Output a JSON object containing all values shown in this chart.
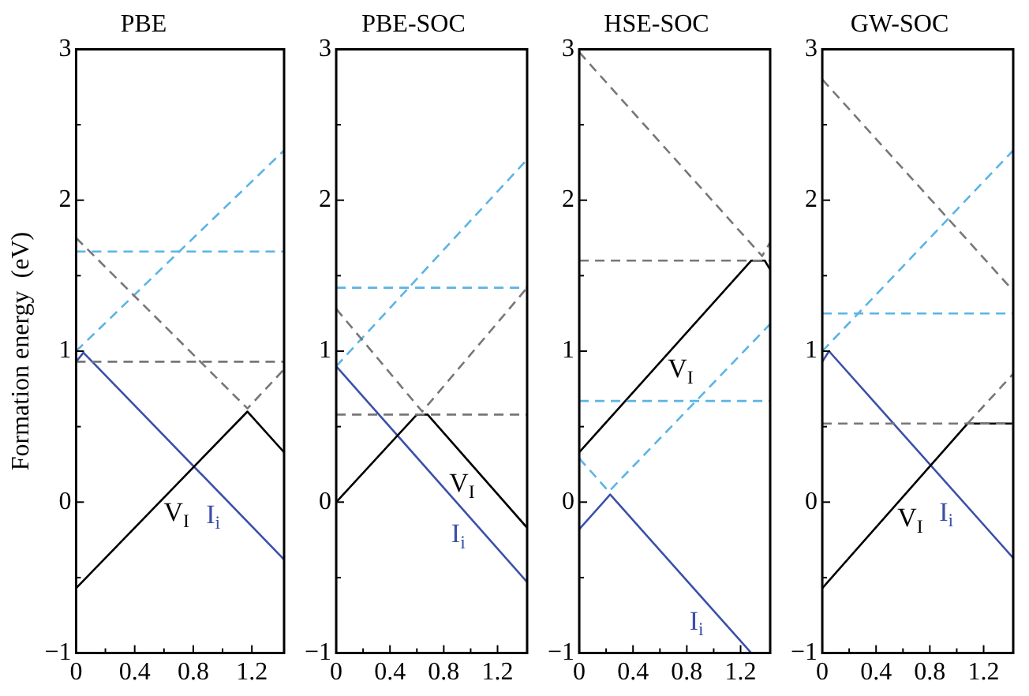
{
  "chart_data": [
    {
      "type": "line",
      "title": "PBE",
      "ylabel": "Formation energy  (eV)",
      "xlim": [
        0,
        1.42
      ],
      "ylim": [
        -1,
        3
      ],
      "xticks": [
        0,
        {
          "value": 0.2,
          "label": null
        },
        0.4,
        {
          "value": 0.6,
          "label": null
        },
        0.8,
        {
          "value": 1.0,
          "label": null
        },
        1.2
      ],
      "yticks": [
        -1,
        {
          "value": -0.5,
          "label": null
        },
        0,
        {
          "value": 0.5,
          "label": null
        },
        1,
        {
          "value": 1.5,
          "label": null
        },
        2,
        {
          "value": 2.5,
          "label": null
        },
        3
      ],
      "grid": false,
      "legend": false,
      "marker": "none",
      "series": [
        {
          "color": "#777777",
          "line_style": "dashed",
          "x": [
            0,
            1.42
          ],
          "values": [
            0.93,
            0.93
          ]
        },
        {
          "color": "#777777",
          "line_style": "dashed",
          "x": [
            0,
            1.17,
            1.42
          ],
          "values": [
            1.75,
            0.62,
            0.88
          ]
        },
        {
          "color": "#5ab4e6",
          "line_style": "dashed",
          "x": [
            0,
            1.42
          ],
          "values": [
            1.66,
            1.66
          ]
        },
        {
          "color": "#5ab4e6",
          "line_style": "dashed",
          "x": [
            0,
            1.42
          ],
          "values": [
            1.0,
            2.33
          ]
        },
        {
          "name": "V$_{I}$",
          "color": "#000000",
          "line_style": "solid",
          "x": [
            0,
            1.17,
            1.42
          ],
          "values": [
            -0.57,
            0.6,
            0.33
          ]
        },
        {
          "name": "I$_{i}$",
          "color": "#3b50a8",
          "line_style": "solid",
          "x": [
            0,
            0.05,
            1.42
          ],
          "values": [
            0.93,
            0.99,
            -0.38
          ]
        }
      ]
    },
    {
      "type": "line",
      "title": "PBE-SOC",
      "xlim": [
        0,
        1.42
      ],
      "ylim": [
        -1,
        3
      ],
      "xticks": [
        0,
        {
          "value": 0.2,
          "label": null
        },
        0.4,
        {
          "value": 0.6,
          "label": null
        },
        0.8,
        {
          "value": 1.0,
          "label": null
        },
        1.2
      ],
      "yticks": [
        -1,
        {
          "value": -0.5,
          "label": null
        },
        0,
        {
          "value": 0.5,
          "label": null
        },
        1,
        {
          "value": 1.5,
          "label": null
        },
        2,
        {
          "value": 2.5,
          "label": null
        },
        3
      ],
      "grid": false,
      "legend": false,
      "marker": "none",
      "series": [
        {
          "color": "#777777",
          "line_style": "dashed",
          "x": [
            0,
            1.42
          ],
          "values": [
            0.58,
            0.58
          ]
        },
        {
          "color": "#777777",
          "line_style": "dashed",
          "x": [
            0,
            0.64,
            1.42
          ],
          "values": [
            1.28,
            0.6,
            1.42
          ]
        },
        {
          "color": "#5ab4e6",
          "line_style": "dashed",
          "x": [
            0,
            1.42
          ],
          "values": [
            1.42,
            1.42
          ]
        },
        {
          "color": "#5ab4e6",
          "line_style": "dashed",
          "x": [
            0,
            1.42
          ],
          "values": [
            0.9,
            2.27
          ]
        },
        {
          "name": "V$_{I}$",
          "color": "#000000",
          "line_style": "solid",
          "x": [
            0,
            0.6,
            0.68,
            1.42
          ],
          "values": [
            0,
            0.58,
            0.58,
            -0.17
          ]
        },
        {
          "name": "I$_{i}$",
          "color": "#3b50a8",
          "line_style": "solid",
          "x": [
            0,
            1.42
          ],
          "values": [
            0.9,
            -0.53
          ]
        }
      ]
    },
    {
      "type": "line",
      "title": "HSE-SOC",
      "xlim": [
        0,
        1.42
      ],
      "ylim": [
        -1,
        3
      ],
      "xticks": [
        0,
        {
          "value": 0.2,
          "label": null
        },
        0.4,
        {
          "value": 0.6,
          "label": null
        },
        0.8,
        {
          "value": 1.0,
          "label": null
        },
        1.2
      ],
      "yticks": [
        -1,
        {
          "value": -0.5,
          "label": null
        },
        0,
        {
          "value": 0.5,
          "label": null
        },
        1,
        {
          "value": 1.5,
          "label": null
        },
        2,
        {
          "value": 2.5,
          "label": null
        },
        3
      ],
      "grid": false,
      "legend": false,
      "marker": "none",
      "series": [
        {
          "color": "#777777",
          "line_style": "dashed",
          "x": [
            0,
            1.42
          ],
          "values": [
            1.6,
            1.6
          ]
        },
        {
          "color": "#777777",
          "line_style": "dashed",
          "x": [
            0,
            1.36,
            1.42
          ],
          "values": [
            2.98,
            1.63,
            1.72
          ]
        },
        {
          "color": "#5ab4e6",
          "line_style": "dashed",
          "x": [
            0,
            1.42
          ],
          "values": [
            0.67,
            0.67
          ]
        },
        {
          "color": "#5ab4e6",
          "line_style": "dashed",
          "x": [
            0,
            0.22,
            1.42
          ],
          "values": [
            0.29,
            0.07,
            1.18
          ]
        },
        {
          "name": "V$_{I}$",
          "color": "#000000",
          "line_style": "solid",
          "x": [
            0,
            1.28,
            1.38,
            1.42
          ],
          "values": [
            0.33,
            1.6,
            1.6,
            1.54
          ]
        },
        {
          "name": "I$_{i}$",
          "color": "#3b50a8",
          "line_style": "solid",
          "x": [
            0,
            0.23,
            1.28
          ],
          "values": [
            -0.18,
            0.05,
            -1.0
          ]
        }
      ]
    },
    {
      "type": "line",
      "title": "GW-SOC",
      "xlim": [
        0,
        1.42
      ],
      "ylim": [
        -1,
        3
      ],
      "xticks": [
        0,
        {
          "value": 0.2,
          "label": null
        },
        0.4,
        {
          "value": 0.6,
          "label": null
        },
        0.8,
        {
          "value": 1.0,
          "label": null
        },
        1.2
      ],
      "yticks": [
        -1,
        {
          "value": -0.5,
          "label": null
        },
        0,
        {
          "value": 0.5,
          "label": null
        },
        1,
        {
          "value": 1.5,
          "label": null
        },
        2,
        {
          "value": 2.5,
          "label": null
        },
        3
      ],
      "grid": false,
      "legend": false,
      "marker": "none",
      "series": [
        {
          "color": "#777777",
          "line_style": "dashed",
          "x": [
            0,
            1.42
          ],
          "values": [
            0.52,
            0.52
          ]
        },
        {
          "color": "#777777",
          "line_style": "dashed",
          "x": [
            0,
            1.42
          ],
          "values": [
            2.8,
            1.4
          ]
        },
        {
          "color": "#777777",
          "line_style": "dashed",
          "x": [
            1.08,
            1.42
          ],
          "values": [
            0.52,
            0.85
          ]
        },
        {
          "color": "#5ab4e6",
          "line_style": "dashed",
          "x": [
            0,
            1.42
          ],
          "values": [
            1.25,
            1.25
          ]
        },
        {
          "color": "#5ab4e6",
          "line_style": "dashed",
          "x": [
            0,
            1.42
          ],
          "values": [
            1.0,
            2.33
          ]
        },
        {
          "name": "V$_{I}$",
          "color": "#000000",
          "line_style": "solid",
          "x": [
            0,
            1.08,
            1.42
          ],
          "values": [
            -0.57,
            0.52,
            0.52
          ]
        },
        {
          "name": "I$_{i}$",
          "color": "#3b50a8",
          "line_style": "solid",
          "x": [
            0,
            0.05,
            1.42
          ],
          "values": [
            0.93,
            1.0,
            -0.37
          ]
        }
      ]
    }
  ]
}
